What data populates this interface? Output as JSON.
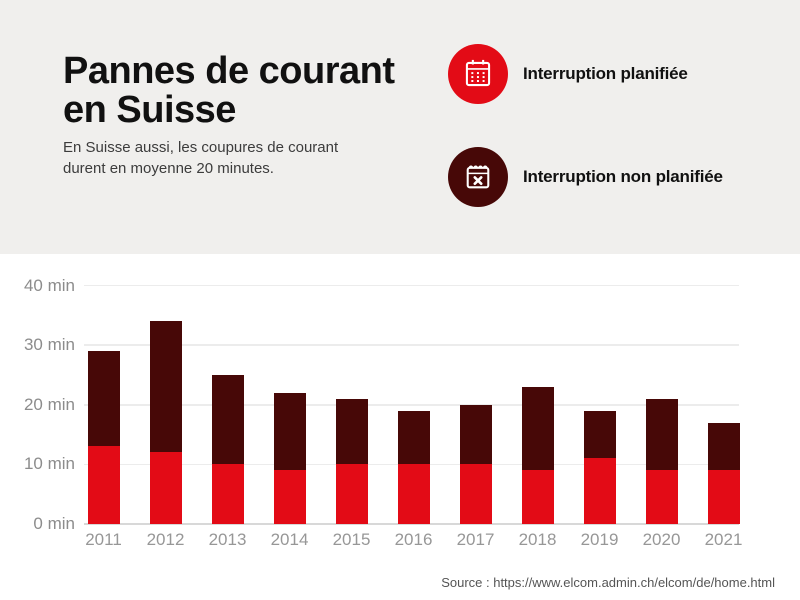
{
  "header": {
    "title_lines": [
      "Pannes de courant",
      "en Suisse"
    ],
    "subtitle_lines": [
      "En Suisse aussi, les coupures de courant",
      "durent en moyenne 20 minutes."
    ]
  },
  "legend": {
    "items": [
      {
        "label": "Interruption planifiée",
        "icon": "calendar-grid-icon",
        "color": "#e30b16"
      },
      {
        "label": "Interruption non planifiée",
        "icon": "calendar-x-icon",
        "color": "#470807"
      }
    ]
  },
  "chart_data": {
    "type": "bar",
    "stacked": true,
    "title": "Pannes de courant en Suisse",
    "unit": "min",
    "categories": [
      "2011",
      "2012",
      "2013",
      "2014",
      "2015",
      "2016",
      "2017",
      "2018",
      "2019",
      "2020",
      "2021"
    ],
    "series": [
      {
        "name": "Interruption planifiée",
        "color": "#e30b16",
        "values": [
          13,
          12,
          10,
          9,
          10,
          10,
          10,
          9,
          11,
          9,
          9
        ]
      },
      {
        "name": "Interruption non planifiée",
        "color": "#470807",
        "values": [
          16,
          22,
          15,
          13,
          11,
          9,
          10,
          14,
          8,
          12,
          8
        ]
      }
    ],
    "totals": [
      29,
      34,
      25,
      22,
      21,
      19,
      20,
      23,
      19,
      21,
      17
    ],
    "ylim": [
      0,
      40
    ],
    "yticks": [
      0,
      10,
      20,
      30,
      40
    ],
    "ytick_format": "{v} min",
    "grid": true,
    "legend_position": "top-right"
  },
  "footer": {
    "source": "Source : https://www.elcom.admin.ch/elcom/de/home.html"
  },
  "colors": {
    "planned": "#e30b16",
    "unplanned": "#470807",
    "header_bg": "#f0efed",
    "chart_bg": "#ffffff",
    "gridline": "#ececec",
    "baseline": "#d8d8d8",
    "axis_label": "#8c8c8c",
    "year_label": "#979797",
    "title_text": "#111111",
    "subtitle_text": "#3c3c3c",
    "source_text": "#555555"
  }
}
